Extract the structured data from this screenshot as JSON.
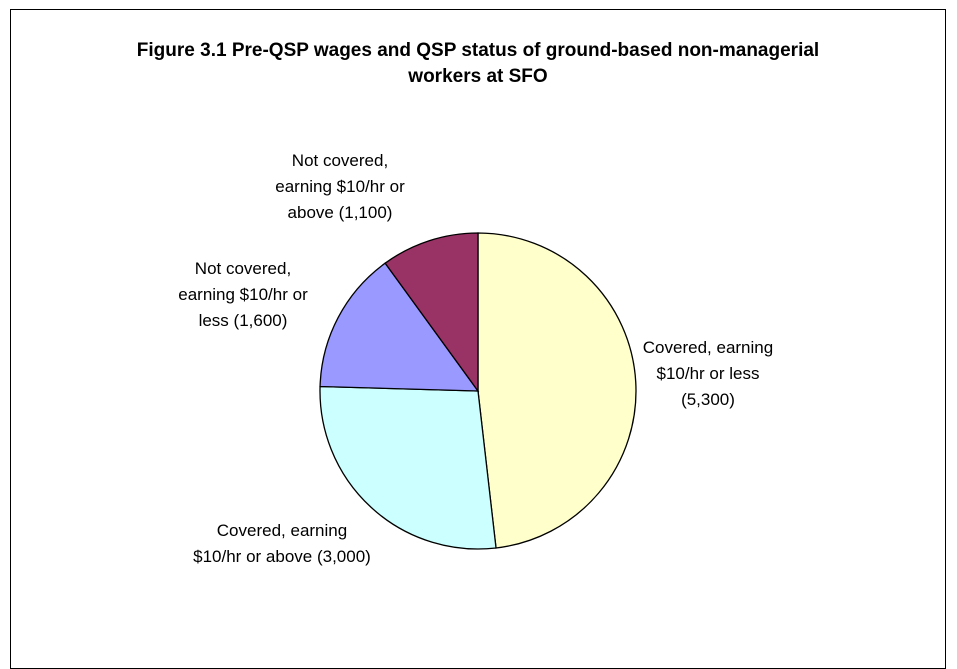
{
  "chart_data": {
    "type": "pie",
    "title": "Figure 3.1 Pre-QSP wages and QSP status of ground-based non-managerial workers at SFO",
    "categories": [
      "Covered, earning $10/hr or less",
      "Covered, earning $10/hr or above",
      "Not covered, earning $10/hr or less",
      "Not covered, earning $10/hr or above"
    ],
    "values": [
      5300,
      3000,
      1600,
      1100
    ],
    "value_labels": [
      "(5,300)",
      "(3,000)",
      "(1,600)",
      "(1,100)"
    ],
    "colors": [
      "#FFFFCC",
      "#CCFFFF",
      "#9999FF",
      "#993366"
    ]
  }
}
